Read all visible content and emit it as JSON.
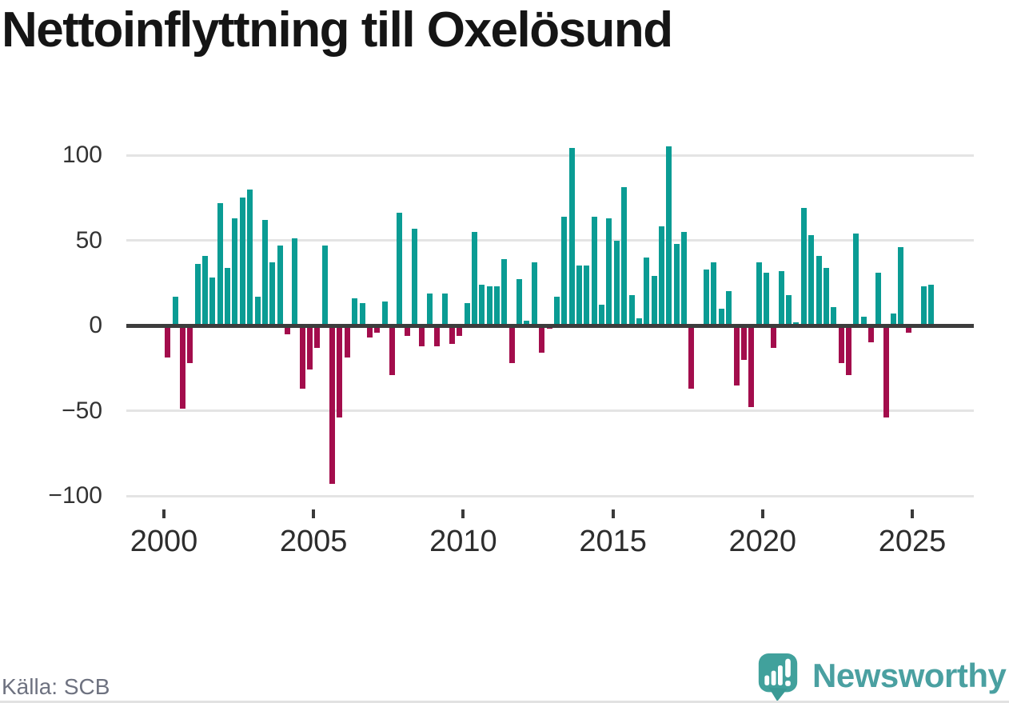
{
  "title": "Nettoinflyttning till Oxelösund",
  "source": "Källa: SCB",
  "branding": {
    "name": "Newsworthy",
    "icon": "newsworthy-speech-bubble-bar-chart-logo",
    "wordmark_color": "#4aa0a1",
    "bubble_color": "#41a19c"
  },
  "chart_data": {
    "type": "bar",
    "title": "Nettoinflyttning till Oxelösund",
    "subtitle": "",
    "frequency": "quarterly",
    "x_start": "2000-Q1",
    "x_end": "2025-Q3",
    "categories": [
      "2000-Q1",
      "2000-Q2",
      "2000-Q3",
      "2000-Q4",
      "2001-Q1",
      "2001-Q2",
      "2001-Q3",
      "2001-Q4",
      "2002-Q1",
      "2002-Q2",
      "2002-Q3",
      "2002-Q4",
      "2003-Q1",
      "2003-Q2",
      "2003-Q3",
      "2003-Q4",
      "2004-Q1",
      "2004-Q2",
      "2004-Q3",
      "2004-Q4",
      "2005-Q1",
      "2005-Q2",
      "2005-Q3",
      "2005-Q4",
      "2006-Q1",
      "2006-Q2",
      "2006-Q3",
      "2006-Q4",
      "2007-Q1",
      "2007-Q2",
      "2007-Q3",
      "2007-Q4",
      "2008-Q1",
      "2008-Q2",
      "2008-Q3",
      "2008-Q4",
      "2009-Q1",
      "2009-Q2",
      "2009-Q3",
      "2009-Q4",
      "2010-Q1",
      "2010-Q2",
      "2010-Q3",
      "2010-Q4",
      "2011-Q1",
      "2011-Q2",
      "2011-Q3",
      "2011-Q4",
      "2012-Q1",
      "2012-Q2",
      "2012-Q3",
      "2012-Q4",
      "2013-Q1",
      "2013-Q2",
      "2013-Q3",
      "2013-Q4",
      "2014-Q1",
      "2014-Q2",
      "2014-Q3",
      "2014-Q4",
      "2015-Q1",
      "2015-Q2",
      "2015-Q3",
      "2015-Q4",
      "2016-Q1",
      "2016-Q2",
      "2016-Q3",
      "2016-Q4",
      "2017-Q1",
      "2017-Q2",
      "2017-Q3",
      "2017-Q4",
      "2018-Q1",
      "2018-Q2",
      "2018-Q3",
      "2018-Q4",
      "2019-Q1",
      "2019-Q2",
      "2019-Q3",
      "2019-Q4",
      "2020-Q1",
      "2020-Q2",
      "2020-Q3",
      "2020-Q4",
      "2021-Q1",
      "2021-Q2",
      "2021-Q3",
      "2021-Q4",
      "2022-Q1",
      "2022-Q2",
      "2022-Q3",
      "2022-Q4",
      "2023-Q1",
      "2023-Q2",
      "2023-Q3",
      "2023-Q4",
      "2024-Q1",
      "2024-Q2",
      "2024-Q3",
      "2024-Q4",
      "2025-Q1",
      "2025-Q2",
      "2025-Q3"
    ],
    "values": [
      -19,
      17,
      -49,
      -22,
      36,
      41,
      28,
      72,
      34,
      63,
      75,
      80,
      17,
      62,
      37,
      47,
      -5,
      51,
      -37,
      -26,
      -13,
      47,
      -93,
      -54,
      -19,
      16,
      13,
      -7,
      -4,
      14,
      -29,
      66,
      -6,
      57,
      -12,
      19,
      -12,
      19,
      -11,
      -6,
      13,
      55,
      24,
      23,
      23,
      39,
      -22,
      27,
      3,
      37,
      -16,
      -2,
      17,
      64,
      104,
      35,
      35,
      64,
      12,
      63,
      50,
      81,
      18,
      4,
      40,
      29,
      58,
      105,
      48,
      55,
      -37,
      0,
      33,
      37,
      10,
      20,
      -35,
      -20,
      -48,
      37,
      31,
      -13,
      32,
      18,
      2,
      69,
      53,
      41,
      34,
      11,
      -22,
      -29,
      54,
      5,
      -10,
      31,
      -54,
      7,
      46,
      -4,
      1,
      23,
      24
    ],
    "yticks": [
      100,
      50,
      0,
      -50,
      -100
    ],
    "ytick_labels": [
      "100",
      "50",
      "0",
      "−50",
      "−100"
    ],
    "xticks": [
      2000,
      2005,
      2010,
      2015,
      2020,
      2025
    ],
    "ylim": [
      -107,
      112
    ],
    "grid": true,
    "legend": false,
    "positive_color": "#0a9c94",
    "negative_color": "#a30d4c"
  }
}
